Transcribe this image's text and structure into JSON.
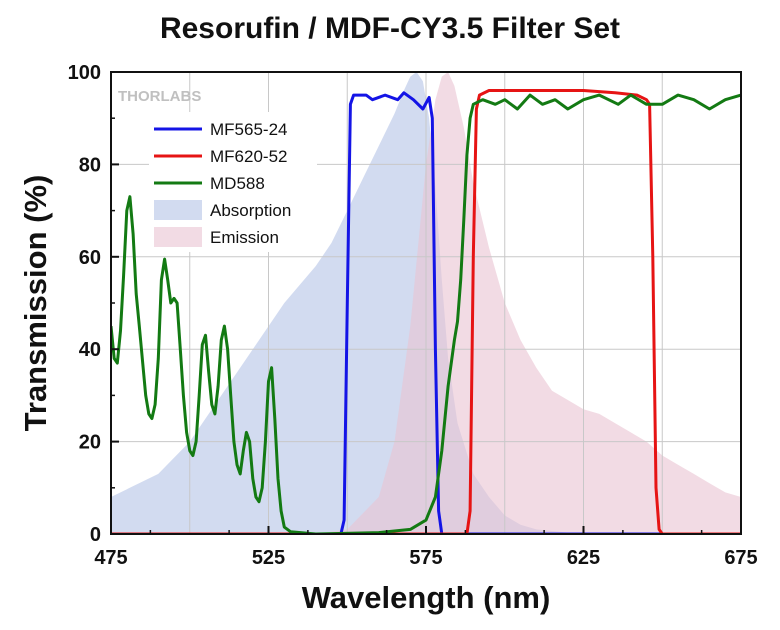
{
  "chart_data": {
    "type": "line",
    "title": "Resorufin / MDF-CY3.5 Filter Set",
    "xlabel": "Wavelength (nm)",
    "ylabel": "Transmission (%)",
    "xlim": [
      475,
      675
    ],
    "ylim": [
      0,
      100
    ],
    "x_ticks": [
      475,
      525,
      575,
      625,
      675
    ],
    "y_ticks": [
      0,
      20,
      40,
      60,
      80,
      100
    ],
    "grid": true,
    "legend_position": "top-left",
    "watermark": "THORLABS",
    "series": [
      {
        "name": "MF565-24",
        "kind": "line",
        "color": "#1414e6",
        "points": [
          [
            475,
            0
          ],
          [
            548,
            0
          ],
          [
            549,
            3
          ],
          [
            550,
            50
          ],
          [
            551,
            93
          ],
          [
            552,
            95
          ],
          [
            556,
            95
          ],
          [
            558,
            94
          ],
          [
            562,
            95
          ],
          [
            566,
            94
          ],
          [
            568,
            95.5
          ],
          [
            571,
            94
          ],
          [
            574,
            92
          ],
          [
            576,
            94.5
          ],
          [
            577,
            90
          ],
          [
            578,
            40
          ],
          [
            579,
            5
          ],
          [
            580,
            0
          ],
          [
            675,
            0
          ]
        ]
      },
      {
        "name": "MF620-52",
        "kind": "line",
        "color": "#e61414",
        "points": [
          [
            475,
            0
          ],
          [
            588,
            0
          ],
          [
            589,
            5
          ],
          [
            590,
            60
          ],
          [
            591,
            92
          ],
          [
            592,
            95
          ],
          [
            595,
            96
          ],
          [
            605,
            96
          ],
          [
            615,
            96
          ],
          [
            625,
            96
          ],
          [
            635,
            95.5
          ],
          [
            642,
            95
          ],
          [
            645,
            94
          ],
          [
            646,
            93
          ],
          [
            647,
            60
          ],
          [
            648,
            10
          ],
          [
            649,
            1
          ],
          [
            650,
            0
          ],
          [
            675,
            0
          ]
        ]
      },
      {
        "name": "MD588",
        "kind": "line",
        "color": "#137a13",
        "points": [
          [
            475,
            45
          ],
          [
            476,
            38
          ],
          [
            477,
            37
          ],
          [
            478,
            44
          ],
          [
            479,
            56
          ],
          [
            480,
            70
          ],
          [
            481,
            73
          ],
          [
            482,
            65
          ],
          [
            483,
            52
          ],
          [
            484,
            45
          ],
          [
            486,
            30
          ],
          [
            487,
            26
          ],
          [
            488,
            25
          ],
          [
            489,
            28
          ],
          [
            490,
            38
          ],
          [
            491,
            55
          ],
          [
            492,
            59.5
          ],
          [
            493,
            55
          ],
          [
            494,
            50
          ],
          [
            495,
            51
          ],
          [
            496,
            50
          ],
          [
            497,
            40
          ],
          [
            498,
            30
          ],
          [
            499,
            22
          ],
          [
            500,
            18
          ],
          [
            501,
            17
          ],
          [
            502,
            20
          ],
          [
            503,
            30
          ],
          [
            504,
            41
          ],
          [
            505,
            43
          ],
          [
            506,
            35
          ],
          [
            507,
            28
          ],
          [
            508,
            26
          ],
          [
            509,
            32
          ],
          [
            510,
            42
          ],
          [
            511,
            45
          ],
          [
            512,
            40
          ],
          [
            513,
            30
          ],
          [
            514,
            20
          ],
          [
            515,
            15
          ],
          [
            516,
            13
          ],
          [
            517,
            18
          ],
          [
            518,
            22
          ],
          [
            519,
            20
          ],
          [
            520,
            12
          ],
          [
            521,
            8
          ],
          [
            522,
            7
          ],
          [
            523,
            10
          ],
          [
            524,
            20
          ],
          [
            525,
            33
          ],
          [
            526,
            36
          ],
          [
            527,
            25
          ],
          [
            528,
            12
          ],
          [
            529,
            5
          ],
          [
            530,
            1.5
          ],
          [
            532,
            0.5
          ],
          [
            540,
            0
          ],
          [
            560,
            0.3
          ],
          [
            570,
            1
          ],
          [
            575,
            3
          ],
          [
            578,
            8
          ],
          [
            580,
            18
          ],
          [
            582,
            32
          ],
          [
            584,
            42
          ],
          [
            585,
            46
          ],
          [
            586,
            55
          ],
          [
            587,
            68
          ],
          [
            588,
            82
          ],
          [
            589,
            90
          ],
          [
            590,
            93
          ],
          [
            593,
            94
          ],
          [
            597,
            93
          ],
          [
            600,
            94
          ],
          [
            604,
            92
          ],
          [
            608,
            95
          ],
          [
            612,
            93
          ],
          [
            616,
            94
          ],
          [
            620,
            92
          ],
          [
            625,
            94
          ],
          [
            630,
            95
          ],
          [
            636,
            93
          ],
          [
            640,
            95
          ],
          [
            645,
            93
          ],
          [
            650,
            93
          ],
          [
            655,
            95
          ],
          [
            660,
            94
          ],
          [
            665,
            92
          ],
          [
            670,
            94
          ],
          [
            675,
            95
          ]
        ]
      },
      {
        "name": "Absorption",
        "kind": "area",
        "color": "#b4c3e6",
        "points": [
          [
            475,
            8
          ],
          [
            490,
            13
          ],
          [
            500,
            20
          ],
          [
            510,
            30
          ],
          [
            520,
            40
          ],
          [
            530,
            50
          ],
          [
            540,
            58
          ],
          [
            545,
            63
          ],
          [
            550,
            70
          ],
          [
            555,
            77
          ],
          [
            560,
            84
          ],
          [
            565,
            91
          ],
          [
            568,
            96
          ],
          [
            570,
            99
          ],
          [
            572,
            100
          ],
          [
            574,
            98
          ],
          [
            576,
            90
          ],
          [
            578,
            75
          ],
          [
            580,
            55
          ],
          [
            582,
            38
          ],
          [
            585,
            24
          ],
          [
            590,
            13
          ],
          [
            595,
            8
          ],
          [
            600,
            4
          ],
          [
            605,
            2
          ],
          [
            610,
            1
          ],
          [
            620,
            0.3
          ],
          [
            675,
            0
          ]
        ]
      },
      {
        "name": "Emission",
        "kind": "area",
        "color": "#e9c3d2",
        "points": [
          [
            475,
            0
          ],
          [
            540,
            0
          ],
          [
            550,
            1
          ],
          [
            560,
            8
          ],
          [
            565,
            20
          ],
          [
            570,
            45
          ],
          [
            575,
            80
          ],
          [
            578,
            94
          ],
          [
            580,
            99
          ],
          [
            582,
            100
          ],
          [
            584,
            97
          ],
          [
            587,
            88
          ],
          [
            590,
            76
          ],
          [
            595,
            62
          ],
          [
            600,
            50
          ],
          [
            605,
            42
          ],
          [
            610,
            36
          ],
          [
            615,
            31
          ],
          [
            620,
            29
          ],
          [
            625,
            27
          ],
          [
            630,
            26
          ],
          [
            635,
            24
          ],
          [
            640,
            22
          ],
          [
            645,
            20
          ],
          [
            650,
            17
          ],
          [
            655,
            15
          ],
          [
            660,
            13
          ],
          [
            665,
            11
          ],
          [
            670,
            9
          ],
          [
            675,
            8
          ]
        ]
      }
    ]
  }
}
